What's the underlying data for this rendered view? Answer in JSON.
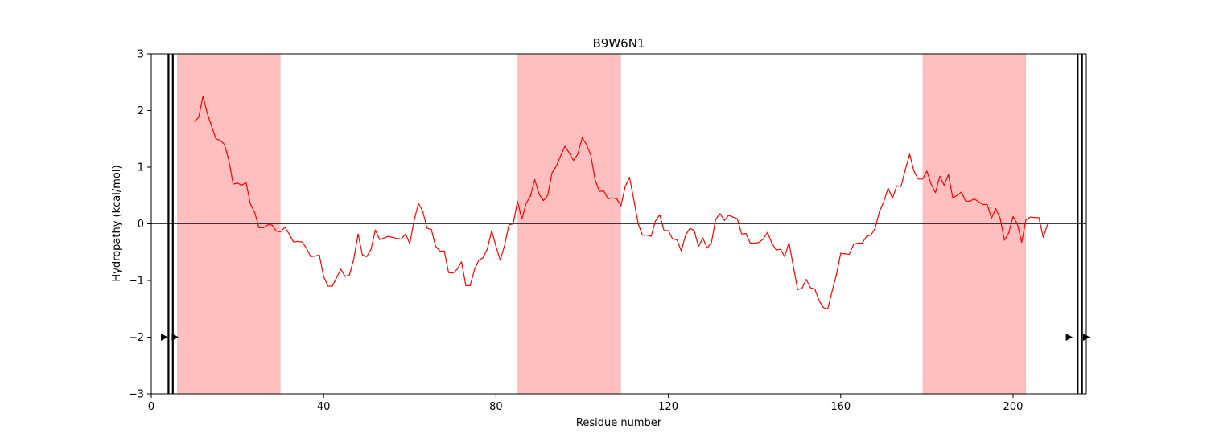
{
  "chart_data": {
    "type": "line",
    "title": "B9W6N1",
    "xlabel": "Residue number",
    "ylabel": "Hydropathy (kcal/mol)",
    "xlim": [
      0,
      217
    ],
    "ylim": [
      -3,
      3
    ],
    "xticks": [
      0,
      40,
      80,
      120,
      160,
      200
    ],
    "yticks": [
      -3,
      -2,
      -1,
      0,
      1,
      2,
      3
    ],
    "zero_line": 0,
    "regions": [
      {
        "start": 6,
        "end": 30
      },
      {
        "start": 85,
        "end": 109
      },
      {
        "start": 179,
        "end": 203
      }
    ],
    "vertical_lines": [
      4,
      5,
      215,
      216
    ],
    "markers": [
      {
        "x": 3,
        "y": -2
      },
      {
        "x": 5.5,
        "y": -2
      },
      {
        "x": 213,
        "y": -2
      },
      {
        "x": 217,
        "y": -2
      }
    ],
    "colors": {
      "line": "#ff0000",
      "region": "#ffbfbf",
      "axis": "#000000"
    },
    "series": [
      {
        "x": [
          10,
          11,
          12,
          13,
          14,
          15,
          16,
          17,
          18,
          19,
          20,
          21,
          22,
          23,
          24,
          25,
          26,
          27,
          28,
          29,
          30,
          31,
          32,
          33,
          34,
          35,
          36,
          37,
          38,
          39,
          40,
          41,
          42,
          43,
          44,
          45,
          46,
          47,
          48,
          49,
          50,
          51,
          52,
          53,
          54,
          55,
          56,
          57,
          58,
          59,
          60,
          61,
          62,
          63,
          64,
          65,
          66,
          67,
          68,
          69,
          70,
          71,
          72,
          73,
          74,
          75,
          76,
          77,
          78,
          79,
          80,
          81,
          82,
          83,
          84,
          85,
          86,
          87,
          88,
          89,
          90,
          91,
          92,
          93,
          94,
          95,
          96,
          97,
          98,
          99,
          100,
          101,
          102,
          103,
          104,
          105,
          106,
          107,
          108,
          109,
          110,
          111,
          112,
          113,
          114,
          115,
          116,
          117,
          118,
          119,
          120,
          121,
          122,
          123,
          124,
          125,
          126,
          127,
          128,
          129,
          130,
          131,
          132,
          133,
          134,
          135,
          136,
          137,
          138,
          139,
          140,
          141,
          142,
          143,
          144,
          145,
          146,
          147,
          148,
          149,
          150,
          151,
          152,
          153,
          154,
          155,
          156,
          157,
          158,
          159,
          160,
          161,
          162,
          163,
          164,
          165,
          166,
          167,
          168,
          169,
          170,
          171,
          172,
          173,
          174,
          175,
          176,
          177,
          178,
          179,
          180,
          181,
          182,
          183,
          184,
          185,
          186,
          187,
          188,
          189,
          190,
          191,
          192,
          193,
          194,
          195,
          196,
          197,
          198,
          199,
          200,
          201,
          202,
          203,
          204,
          205,
          206,
          207,
          208
        ],
        "values": [
          1.8,
          1.88,
          2.25,
          1.95,
          1.72,
          1.5,
          1.47,
          1.4,
          1.12,
          0.7,
          0.72,
          0.68,
          0.73,
          0.35,
          0.2,
          -0.07,
          -0.07,
          -0.02,
          -0.02,
          -0.13,
          -0.14,
          -0.06,
          -0.18,
          -0.32,
          -0.31,
          -0.32,
          -0.43,
          -0.58,
          -0.57,
          -0.55,
          -0.93,
          -1.1,
          -1.1,
          -0.95,
          -0.8,
          -0.93,
          -0.9,
          -0.62,
          -0.18,
          -0.55,
          -0.58,
          -0.45,
          -0.11,
          -0.28,
          -0.25,
          -0.22,
          -0.24,
          -0.26,
          -0.27,
          -0.18,
          -0.35,
          0.06,
          0.36,
          0.22,
          -0.08,
          -0.1,
          -0.4,
          -0.48,
          -0.48,
          -0.86,
          -0.87,
          -0.8,
          -0.67,
          -1.09,
          -1.09,
          -0.81,
          -0.64,
          -0.6,
          -0.44,
          -0.12,
          -0.4,
          -0.64,
          -0.38,
          -0.02,
          0.0,
          0.4,
          0.08,
          0.36,
          0.49,
          0.78,
          0.52,
          0.41,
          0.5,
          0.9,
          1.02,
          1.2,
          1.37,
          1.25,
          1.12,
          1.23,
          1.52,
          1.4,
          1.21,
          0.78,
          0.57,
          0.58,
          0.44,
          0.46,
          0.44,
          0.32,
          0.66,
          0.82,
          0.42,
          0.0,
          -0.2,
          -0.2,
          -0.22,
          0.05,
          0.16,
          -0.12,
          -0.12,
          -0.27,
          -0.28,
          -0.48,
          -0.2,
          -0.08,
          -0.12,
          -0.4,
          -0.25,
          -0.43,
          -0.33,
          0.08,
          0.18,
          0.06,
          0.15,
          0.12,
          0.09,
          -0.18,
          -0.17,
          -0.34,
          -0.34,
          -0.33,
          -0.27,
          -0.15,
          -0.34,
          -0.46,
          -0.45,
          -0.58,
          -0.33,
          -0.75,
          -1.16,
          -1.14,
          -0.98,
          -1.13,
          -1.15,
          -1.36,
          -1.48,
          -1.5,
          -1.19,
          -0.9,
          -0.52,
          -0.53,
          -0.54,
          -0.36,
          -0.34,
          -0.34,
          -0.22,
          -0.2,
          -0.08,
          0.22,
          0.39,
          0.63,
          0.45,
          0.67,
          0.66,
          0.96,
          1.23,
          0.93,
          0.79,
          0.79,
          0.93,
          0.7,
          0.55,
          0.84,
          0.68,
          0.87,
          0.46,
          0.5,
          0.56,
          0.4,
          0.4,
          0.44,
          0.39,
          0.34,
          0.34,
          0.1,
          0.27,
          0.1,
          -0.29,
          -0.16,
          0.13,
          0.0,
          -0.33,
          0.07,
          0.12,
          0.11,
          0.11,
          -0.24,
          -0.01
        ]
      }
    ]
  }
}
